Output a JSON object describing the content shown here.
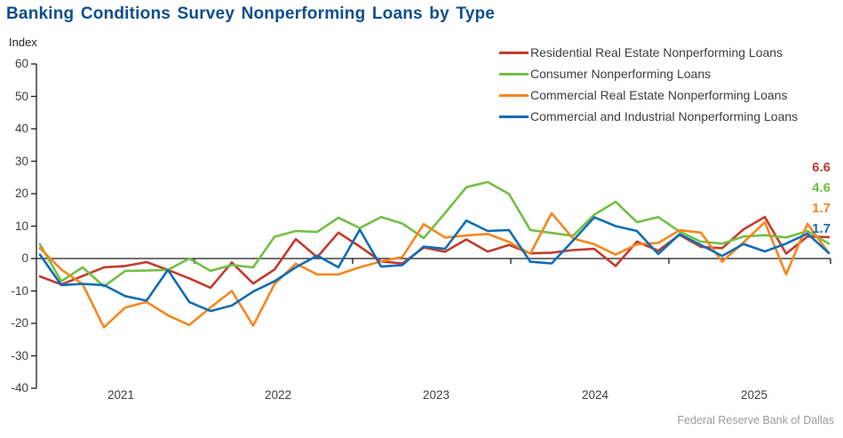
{
  "title": "Banking Conditions Survey Nonperforming Loans by Type",
  "y_axis_unit": "Index",
  "source": "Federal Reserve Bank of Dallas",
  "accent_colors": {
    "title": "#0F4E8C",
    "axis_line": "#1a1a1a",
    "axis_text": "#3F3F3F",
    "footer_text": "#9B9B9B"
  },
  "legend": [
    {
      "key": "residential",
      "label": "Residential Real Estate Nonperforming Loans"
    },
    {
      "key": "consumer",
      "label": "Consumer Nonperforming Loans"
    },
    {
      "key": "commercial_re",
      "label": "Commercial Real Estate Nonperforming Loans"
    },
    {
      "key": "commercial_industrial",
      "label": "Commercial and Industrial Nonperforming Loans"
    }
  ],
  "end_labels": [
    {
      "key": "residential",
      "value": "6.6"
    },
    {
      "key": "consumer",
      "value": "4.6"
    },
    {
      "key": "commercial_re",
      "value": "1.7"
    },
    {
      "key": "commercial_industrial",
      "value": "1.7"
    }
  ],
  "chart_data": {
    "type": "line",
    "title": "Banking Conditions Survey Nonperforming Loans by Type",
    "xlabel": "",
    "ylabel": "Index",
    "ylim": [
      -40,
      60
    ],
    "y_ticks": [
      60,
      50,
      40,
      30,
      20,
      10,
      0,
      -10,
      -20,
      -30,
      -40
    ],
    "grid": false,
    "legend_position": "top-right",
    "x_year_labels": [
      "2021",
      "2022",
      "2023",
      "2024",
      "2025"
    ],
    "x": [
      "2021-01",
      "2021-02",
      "2021-04",
      "2021-06",
      "2021-07",
      "2021-09",
      "2021-11",
      "2021-12",
      "2022-02",
      "2022-04",
      "2022-05",
      "2022-07",
      "2022-08",
      "2022-10",
      "2022-12",
      "2023-01",
      "2023-03",
      "2023-04",
      "2023-06",
      "2023-08",
      "2023-09",
      "2023-11",
      "2024-01",
      "2024-02",
      "2024-04",
      "2024-05",
      "2024-07",
      "2024-09",
      "2024-10",
      "2024-12",
      "2025-02",
      "2025-03",
      "2025-05",
      "2025-06",
      "2025-08",
      "2025-10",
      "2025-11",
      "2025-12"
    ],
    "series": [
      {
        "key": "residential",
        "name": "Residential Real Estate Nonperforming Loans",
        "color": "#C23B2C",
        "values": [
          -5.5,
          -8.0,
          -5.4,
          -2.7,
          -2.3,
          -1.1,
          -3.5,
          -6.1,
          -9.0,
          -1.2,
          -7.7,
          -3.4,
          6.0,
          0.4,
          8.0,
          3.7,
          -0.9,
          -1.5,
          3.4,
          2.1,
          5.9,
          2.1,
          4.2,
          1.6,
          1.8,
          2.6,
          3.0,
          -2.3,
          5.2,
          2.4,
          7.3,
          3.6,
          3.2,
          9.0,
          12.8,
          1.5,
          6.8,
          6.6
        ]
      },
      {
        "key": "consumer",
        "name": "Consumer Nonperforming Loans",
        "color": "#72BF44",
        "values": [
          4.4,
          -7.0,
          -2.7,
          -8.6,
          -3.8,
          -3.7,
          -3.5,
          0.0,
          -3.8,
          -2.0,
          -2.7,
          6.7,
          8.5,
          8.2,
          12.6,
          9.4,
          12.8,
          10.8,
          6.3,
          14.0,
          22.0,
          23.6,
          19.9,
          8.8,
          7.9,
          7.0,
          13.5,
          17.5,
          11.2,
          12.8,
          8.3,
          5.2,
          4.6,
          6.8,
          7.2,
          6.5,
          8.5,
          4.6
        ]
      },
      {
        "key": "commercial_re",
        "name": "Commercial Real Estate Nonperforming Loans",
        "color": "#F6861F",
        "values": [
          3.2,
          -3.4,
          -7.9,
          -21.2,
          -15.1,
          -13.4,
          -17.5,
          -20.5,
          -15.1,
          -10.0,
          -20.7,
          -7.9,
          -1.6,
          -4.9,
          -4.9,
          -2.7,
          -0.9,
          0.5,
          10.6,
          6.5,
          7.1,
          7.6,
          5.1,
          1.5,
          14.0,
          6.2,
          4.4,
          1.2,
          4.4,
          4.8,
          8.7,
          8.0,
          -1.0,
          5.0,
          11.2,
          -4.9,
          10.7,
          1.7
        ]
      },
      {
        "key": "commercial_industrial",
        "name": "Commercial and Industrial Nonperforming Loans",
        "color": "#0F6DB5",
        "values": [
          1.2,
          -8.2,
          -7.8,
          -8.2,
          -11.6,
          -13.0,
          -3.5,
          -13.4,
          -16.2,
          -14.5,
          -10.2,
          -7.0,
          -2.7,
          0.9,
          -2.7,
          8.9,
          -2.5,
          -2.0,
          3.7,
          3.0,
          11.7,
          8.5,
          8.8,
          -1.0,
          -1.5,
          5.5,
          12.7,
          10.0,
          8.5,
          1.4,
          7.5,
          4.2,
          0.8,
          4.5,
          2.2,
          4.6,
          7.7,
          1.7
        ]
      }
    ],
    "end_values": {
      "residential": 6.6,
      "consumer": 4.6,
      "commercial_re": 1.7,
      "commercial_industrial": 1.7
    }
  }
}
